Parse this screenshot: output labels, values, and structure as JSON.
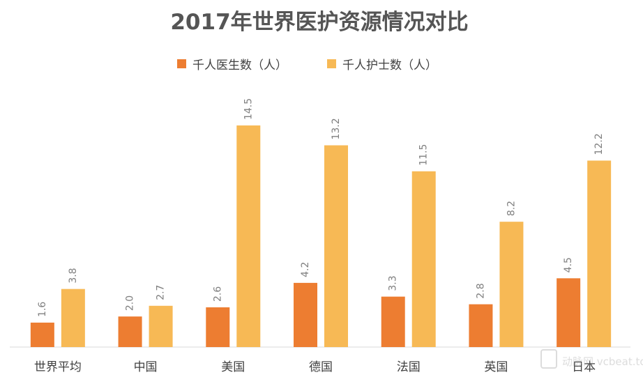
{
  "chart_data": {
    "type": "bar",
    "title": "2017年世界医护资源情况对比",
    "categories": [
      "世界平均",
      "中国",
      "美国",
      "德国",
      "法国",
      "英国",
      "日本"
    ],
    "series": [
      {
        "name": "千人医生数（人）",
        "color": "#ed7d31",
        "values": [
          1.6,
          2.0,
          2.6,
          4.2,
          3.3,
          2.8,
          4.5
        ]
      },
      {
        "name": "千人护士数（人）",
        "color": "#f7b955",
        "values": [
          3.8,
          2.7,
          14.5,
          13.2,
          11.5,
          8.2,
          12.2
        ]
      }
    ],
    "value_labels": {
      "s0": [
        "1.6",
        "2.0",
        "2.6",
        "4.2",
        "3.3",
        "2.8",
        "4.5"
      ],
      "s1": [
        "3.8",
        "2.7",
        "14.5",
        "13.2",
        "11.5",
        "8.2",
        "12.2"
      ]
    },
    "ylim": [
      0,
      14.5
    ],
    "legend": "top-center",
    "grid": false,
    "watermark": "动脉网 vcbeat.top"
  }
}
